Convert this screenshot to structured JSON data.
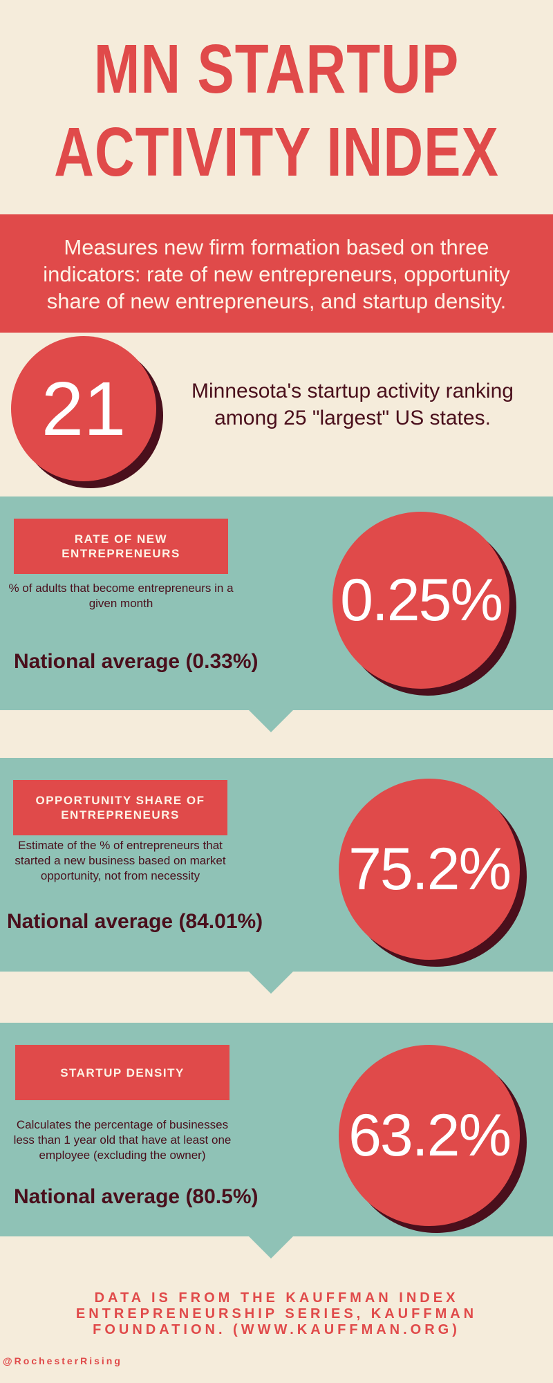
{
  "header": {
    "title": "MN STARTUP ACTIVITY INDEX"
  },
  "intro": {
    "description": "Measures new firm formation based on three indicators: rate of new entrepreneurs, opportunity share of new entrepreneurs, and startup density."
  },
  "ranking": {
    "value": "21",
    "text": "Minnesota's startup activity ranking among 25 \"largest\" US states."
  },
  "metrics": [
    {
      "label": "RATE OF NEW ENTREPRENEURS",
      "description": "% of adults that become entrepreneurs in a given month",
      "value": "0.25%",
      "national_average": "National average (0.33%)"
    },
    {
      "label": "OPPORTUNITY SHARE OF ENTREPRENEURS",
      "description": "Estimate of the % of entrepreneurs that started a new business based on market opportunity, not from necessity",
      "value": "75.2%",
      "national_average": "National average (84.01%)"
    },
    {
      "label": "STARTUP DENSITY",
      "description": "Calculates the percentage of businesses less than 1 year old that have at least one employee (excluding the owner)",
      "value": "63.2%",
      "national_average": "National average (80.5%)"
    }
  ],
  "footer": {
    "source": "DATA IS FROM THE KAUFFMAN INDEX ENTREPRENEURSHIP SERIES, KAUFFMAN FOUNDATION. (WWW.KAUFFMAN.ORG)",
    "handle": "@RochesterRising"
  }
}
